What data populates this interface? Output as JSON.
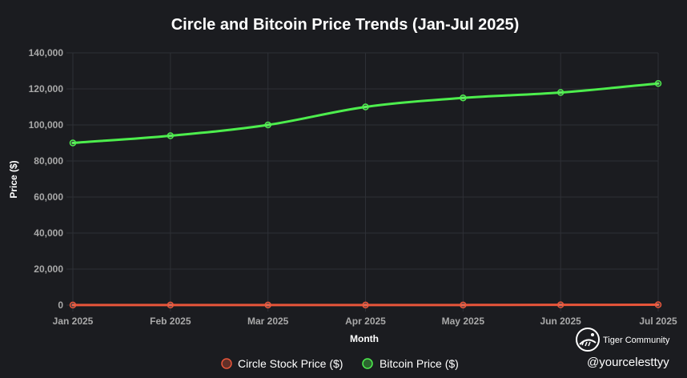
{
  "chart_data": {
    "type": "line",
    "title": "Circle and Bitcoin Price Trends (Jan-Jul 2025)",
    "xlabel": "Month",
    "ylabel": "Price ($)",
    "categories": [
      "Jan 2025",
      "Feb 2025",
      "Mar 2025",
      "Apr 2025",
      "May 2025",
      "Jun 2025",
      "Jul 2025"
    ],
    "ylim": [
      0,
      140000
    ],
    "yticks": [
      0,
      20000,
      40000,
      60000,
      80000,
      100000,
      120000,
      140000
    ],
    "ytick_labels": [
      "0",
      "20,000",
      "40,000",
      "60,000",
      "80,000",
      "100,000",
      "120,000",
      "140,000"
    ],
    "grid": true,
    "legend_position": "bottom-center",
    "series": [
      {
        "name": "Circle Stock Price ($)",
        "color": "#e8553a",
        "values": [
          50,
          55,
          60,
          70,
          80,
          150,
          200
        ]
      },
      {
        "name": "Bitcoin Price ($)",
        "color": "#4dee4d",
        "values": [
          90000,
          94000,
          100000,
          110000,
          115000,
          118000,
          123000
        ]
      }
    ]
  },
  "watermark": {
    "brand": "Tiger Community",
    "handle": "@yourcelesttyy",
    "icon": "tiger-logo-icon"
  },
  "colors": {
    "background": "#1b1c20",
    "grid": "#2e3036",
    "text": "#ffffff",
    "tick": "#a9a9a9"
  }
}
